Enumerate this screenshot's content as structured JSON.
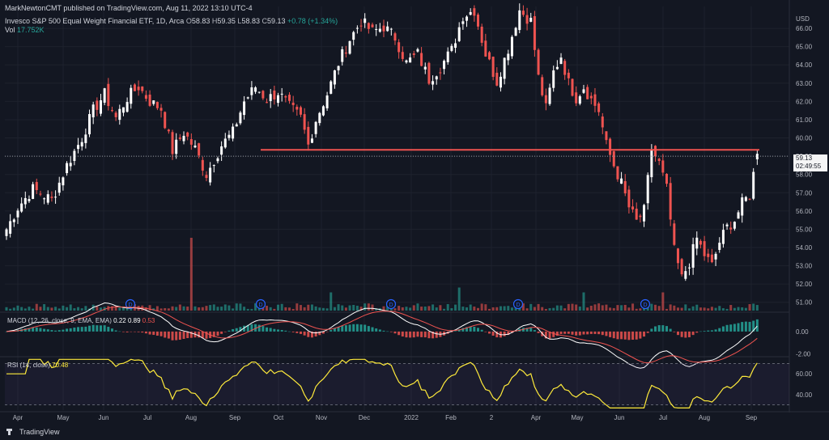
{
  "header": {
    "published": "MarkNewtonCMT published on TradingView.com, Aug 11, 2022 13:10 UTC-4",
    "title": "Invesco S&P 500 Equal Weight Financial ETF, 1D, Arca",
    "ohlc": {
      "o_label": "O",
      "o": "58.83",
      "h_label": "H",
      "h": "59.35",
      "l_label": "L",
      "l": "58.83",
      "c_label": "C",
      "c": "59.13",
      "change": "+0.78 (+1.34%)"
    },
    "vol_label": "Vol",
    "vol_value": "17.752K"
  },
  "price_tag": {
    "price": "59.13",
    "countdown": "02:49:55"
  },
  "macd_label": {
    "text": "MACD (12, 26, close, 9, EMA, EMA)",
    "v1": "0.22",
    "v2": "0.89",
    "v3": "0.53"
  },
  "rsi_label": {
    "text": "RSI (14, close)",
    "v": "70.48"
  },
  "brand": "TradingView",
  "dividend_marker": "D",
  "colors": {
    "bg": "#131722",
    "up": "#ffffff",
    "down": "#ef5350",
    "resistance": "#ef5350",
    "rsi": "#ffeb3b",
    "macd": "#ffffff",
    "signal": "#ef5350",
    "hist_up": "#26a69a",
    "hist_down": "#ef5350"
  },
  "chart_data": [
    {
      "type": "candlestick",
      "currency_label": "USD",
      "x_ticks": [
        "Apr",
        "May",
        "Jun",
        "Jul",
        "Aug",
        "Sep",
        "Oct",
        "Nov",
        "Dec",
        "2022",
        "Feb",
        "2",
        "Apr",
        "May",
        "Jun",
        "Jul",
        "Aug",
        "Sep"
      ],
      "y_ticks": [
        "66.00",
        "65.00",
        "64.00",
        "63.00",
        "62.00",
        "61.00",
        "60.00",
        "59.00",
        "58.00",
        "57.00",
        "56.00",
        "55.00",
        "54.00",
        "53.00",
        "52.00",
        "51.00"
      ],
      "ylim": [
        50.5,
        67.2
      ],
      "resistance_level": 59.35,
      "last_price": 59.13,
      "dividend_markers": [
        "Jun",
        "Sep",
        "2022",
        "Apr",
        "Jun"
      ],
      "close_path": [
        [
          0,
          55.0
        ],
        [
          3,
          56.2
        ],
        [
          7,
          57.2
        ],
        [
          12,
          56.6
        ],
        [
          16,
          58.5
        ],
        [
          20,
          60.0
        ],
        [
          23,
          61.5
        ],
        [
          26,
          62.4
        ],
        [
          29,
          61.1
        ],
        [
          32,
          62.2
        ],
        [
          35,
          62.8
        ],
        [
          38,
          62.0
        ],
        [
          41,
          61.6
        ],
        [
          44,
          59.3
        ],
        [
          47,
          60.3
        ],
        [
          50,
          59.4
        ],
        [
          53,
          58.0
        ],
        [
          57,
          59.6
        ],
        [
          60,
          60.3
        ],
        [
          63,
          62.0
        ],
        [
          66,
          62.8
        ],
        [
          69,
          62.1
        ],
        [
          72,
          62.5
        ],
        [
          75,
          61.7
        ],
        [
          78,
          61.1
        ],
        [
          80,
          59.6
        ],
        [
          82,
          61.0
        ],
        [
          85,
          62.4
        ],
        [
          88,
          64.1
        ],
        [
          91,
          65.4
        ],
        [
          94,
          66.4
        ],
        [
          97,
          65.8
        ],
        [
          100,
          66.1
        ],
        [
          103,
          65.5
        ],
        [
          106,
          64.1
        ],
        [
          109,
          64.6
        ],
        [
          112,
          63.2
        ],
        [
          115,
          63.9
        ],
        [
          118,
          64.8
        ],
        [
          121,
          66.7
        ],
        [
          124,
          67.0
        ],
        [
          127,
          64.6
        ],
        [
          130,
          63.1
        ],
        [
          133,
          64.9
        ],
        [
          136,
          67.0
        ],
        [
          139,
          66.4
        ],
        [
          141,
          63.3
        ],
        [
          143,
          61.6
        ],
        [
          145,
          63.6
        ],
        [
          147,
          64.5
        ],
        [
          149,
          63.0
        ],
        [
          151,
          62.2
        ],
        [
          153,
          62.8
        ],
        [
          155,
          62.1
        ],
        [
          157,
          61.5
        ],
        [
          159,
          59.6
        ],
        [
          161,
          58.5
        ],
        [
          163,
          57.5
        ],
        [
          165,
          56.2
        ],
        [
          167,
          55.4
        ],
        [
          169,
          56.0
        ],
        [
          171,
          59.4
        ],
        [
          173,
          58.6
        ],
        [
          175,
          57.2
        ],
        [
          177,
          53.8
        ],
        [
          179,
          52.3
        ],
        [
          181,
          53.2
        ],
        [
          183,
          54.5
        ],
        [
          185,
          53.6
        ],
        [
          187,
          53.0
        ],
        [
          189,
          54.3
        ],
        [
          191,
          55.1
        ],
        [
          193,
          55.5
        ],
        [
          195,
          56.4
        ],
        [
          197,
          56.9
        ],
        [
          199,
          59.13
        ]
      ],
      "volume_spikes": [
        [
          49,
          12.0
        ],
        [
          86,
          3.0
        ],
        [
          120,
          3.8
        ],
        [
          153,
          3.0
        ],
        [
          174,
          3.0
        ]
      ]
    },
    {
      "type": "line",
      "name": "MACD",
      "y_ticks": [
        "0.00",
        "-2.00"
      ],
      "ylim": [
        -2.2,
        1.6
      ]
    },
    {
      "type": "line",
      "name": "RSI",
      "y_ticks": [
        "60.00",
        "40.00"
      ],
      "ylim": [
        25,
        75
      ],
      "bands": [
        70,
        30
      ],
      "last_value": 70.48
    }
  ]
}
